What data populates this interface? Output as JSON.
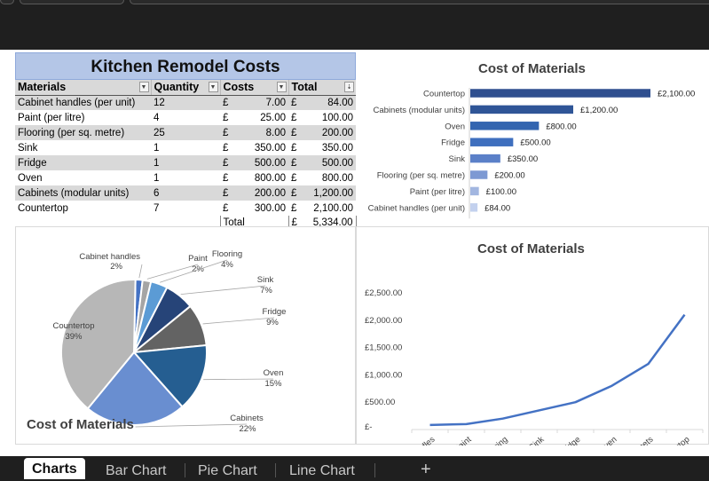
{
  "table": {
    "title": "Kitchen Remodel Costs",
    "headers": [
      "Materials",
      "Quantity",
      "Costs",
      "Total"
    ],
    "rows": [
      {
        "material": "Cabinet handles (per unit)",
        "qty": "12",
        "cur1": "£",
        "cost": "7.00",
        "cur2": "£",
        "total": "84.00"
      },
      {
        "material": "Paint (per litre)",
        "qty": "4",
        "cur1": "£",
        "cost": "25.00",
        "cur2": "£",
        "total": "100.00"
      },
      {
        "material": "Flooring (per sq. metre)",
        "qty": "25",
        "cur1": "£",
        "cost": "8.00",
        "cur2": "£",
        "total": "200.00"
      },
      {
        "material": "Sink",
        "qty": "1",
        "cur1": "£",
        "cost": "350.00",
        "cur2": "£",
        "total": "350.00"
      },
      {
        "material": "Fridge",
        "qty": "1",
        "cur1": "£",
        "cost": "500.00",
        "cur2": "£",
        "total": "500.00"
      },
      {
        "material": "Oven",
        "qty": "1",
        "cur1": "£",
        "cost": "800.00",
        "cur2": "£",
        "total": "800.00"
      },
      {
        "material": "Cabinets (modular units)",
        "qty": "6",
        "cur1": "£",
        "cost": "200.00",
        "cur2": "£",
        "total": "1,200.00"
      },
      {
        "material": "Countertop",
        "qty": "7",
        "cur1": "£",
        "cost": "300.00",
        "cur2": "£",
        "total": "2,100.00"
      }
    ],
    "total_label": "Total",
    "total_currency": "£",
    "total_value": "5,334.00"
  },
  "chart_data": [
    {
      "type": "bar",
      "title": "Cost of Materials",
      "orientation": "horizontal",
      "categories": [
        "Countertop",
        "Cabinets (modular units)",
        "Oven",
        "Fridge",
        "Sink",
        "Flooring (per sq. metre)",
        "Paint (per litre)",
        "Cabinet handles (per unit)"
      ],
      "values": [
        2100,
        1200,
        800,
        500,
        350,
        200,
        100,
        84
      ],
      "data_labels": [
        "£2,100.00",
        "£1,200.00",
        "£800.00",
        "£500.00",
        "£350.00",
        "£200.00",
        "£100.00",
        "£84.00"
      ],
      "colors": [
        "#2f4f8f",
        "#2f5597",
        "#3365b0",
        "#3f6fbe",
        "#5b80c8",
        "#7d99d3",
        "#a2b6e0",
        "#c3d1ee"
      ]
    },
    {
      "type": "pie",
      "title": "Cost of Materials",
      "slices": [
        {
          "label": "Cabinet handles",
          "pct": "2%",
          "value": 84,
          "color": "#4472c4"
        },
        {
          "label": "Paint",
          "pct": "2%",
          "value": 100,
          "color": "#a5a5a5"
        },
        {
          "label": "Flooring",
          "pct": "4%",
          "value": 200,
          "color": "#5b9bd5"
        },
        {
          "label": "Sink",
          "pct": "7%",
          "value": 350,
          "color": "#264478"
        },
        {
          "label": "Fridge",
          "pct": "9%",
          "value": 500,
          "color": "#636363"
        },
        {
          "label": "Oven",
          "pct": "15%",
          "value": 800,
          "color": "#255e91"
        },
        {
          "label": "Cabinets",
          "pct": "22%",
          "value": 1200,
          "color": "#698ed0"
        },
        {
          "label": "Countertop",
          "pct": "39%",
          "value": 2100,
          "color": "#b7b7b7"
        }
      ]
    },
    {
      "type": "line",
      "title": "Cost of Materials",
      "categories": [
        "Cabinet handles",
        "Paint",
        "Flooring",
        "Sink",
        "Fridge",
        "Oven",
        "Cabinets",
        "Countertop"
      ],
      "values": [
        84,
        100,
        200,
        350,
        500,
        800,
        1200,
        2100
      ],
      "ylim": [
        0,
        2500
      ],
      "yticks": [
        "£2,500.00",
        "£2,000.00",
        "£1,500.00",
        "£1,000.00",
        "£500.00",
        "£-"
      ],
      "ytick_values": [
        2500,
        2000,
        1500,
        1000,
        500,
        0
      ],
      "color": "#4472c4"
    }
  ],
  "tabs": {
    "items": [
      "Charts",
      "Bar Chart",
      "Pie Chart",
      "Line Chart"
    ],
    "active": "Charts",
    "add_symbol": "+"
  }
}
